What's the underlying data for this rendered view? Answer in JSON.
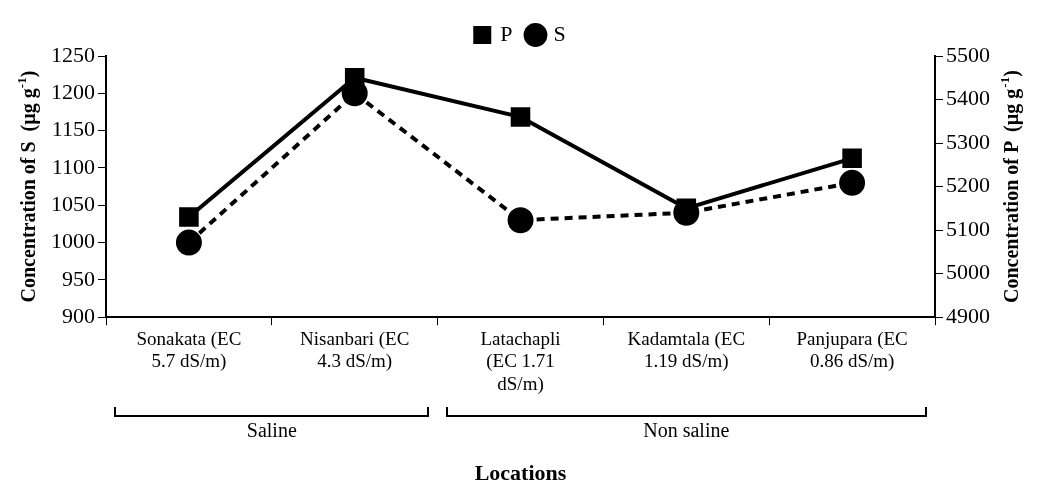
{
  "chart_data": {
    "type": "line",
    "xlabel": "Locations",
    "ylabel": "Concentration of S  (µg g$^{-1}$)",
    "y2label": "Concentration of P  (µg g$^{-1}$)",
    "categories": [
      "Sonakata (EC 5.7 dS/m)",
      "Nisanbari (EC 4.3 dS/m)",
      "Latachapli (EC 1.71 dS/m)",
      "Kadamtala (EC 1.19 dS/m)",
      "Panjupara (EC 0.86 dS/m)"
    ],
    "series": [
      {
        "name": "S",
        "color": "#000000",
        "values": [
          1000,
          1200,
          1030,
          1040,
          1080
        ],
        "line_style": "dashed",
        "marker": "circle"
      },
      {
        "name": "P",
        "color": "#000000",
        "values": [
          5130,
          5450,
          5360,
          5150,
          5265
        ],
        "line_style": "solid",
        "marker": "square",
        "axis": "y2"
      }
    ],
    "ylim": [
      900,
      1250
    ],
    "yticks": [
      900,
      950,
      1000,
      1050,
      1100,
      1150,
      1200,
      1250
    ],
    "y2lim": [
      4900,
      5500
    ],
    "y2ticks": [
      4900,
      5000,
      5100,
      5200,
      5300,
      5400,
      5500
    ],
    "legend": "top",
    "grid": false,
    "annotations": [
      "Saline",
      "Non saline"
    ]
  }
}
